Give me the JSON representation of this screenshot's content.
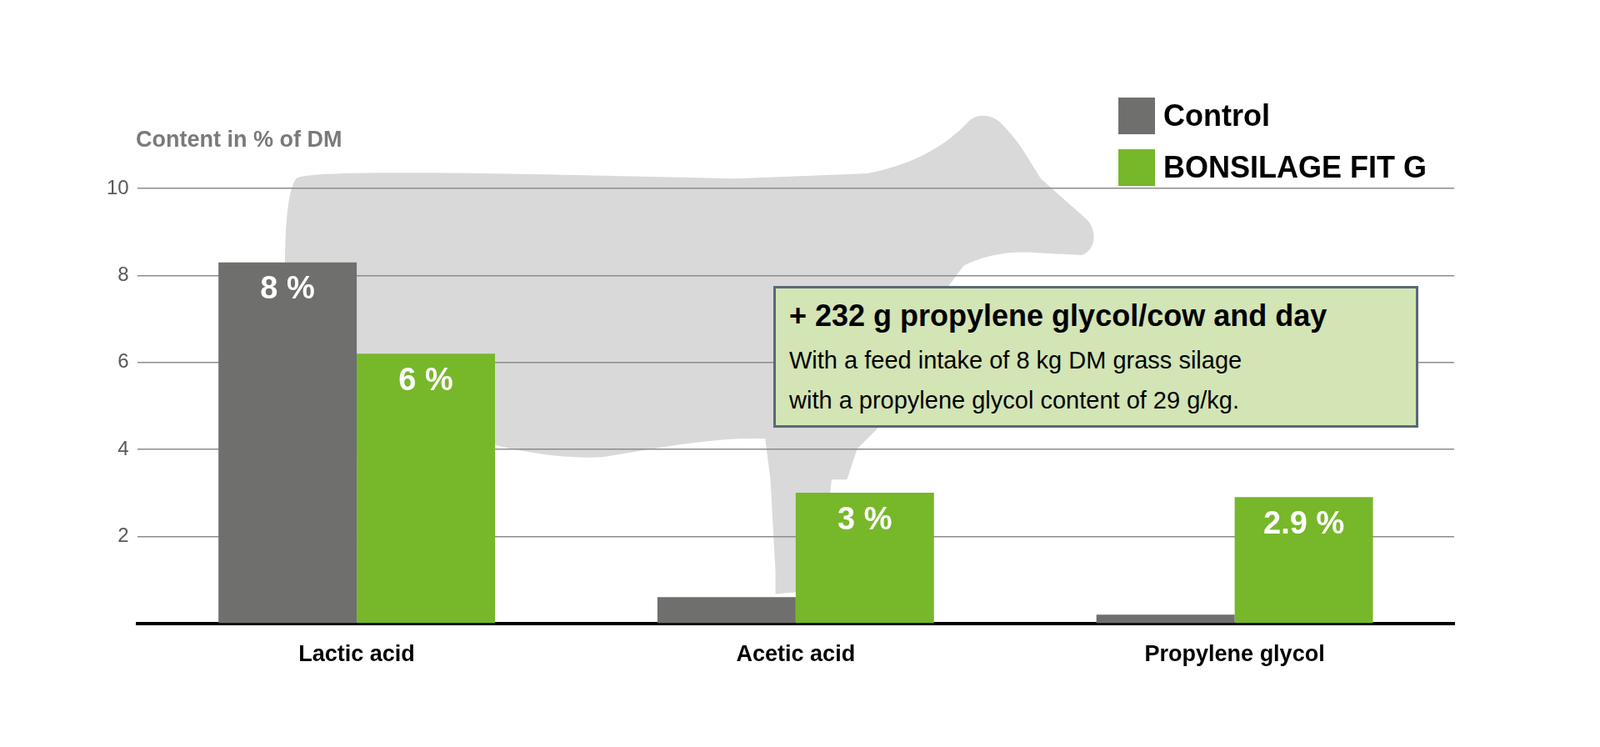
{
  "chart_data": {
    "type": "bar",
    "y_label": "Content in % of DM",
    "categories": [
      "Lactic acid",
      "Acetic acid",
      "Propylene glycol"
    ],
    "series": [
      {
        "name": "Control",
        "color": "#6f6f6e",
        "values": [
          8.3,
          0.6,
          0.2
        ],
        "value_labels": [
          "8 %",
          null,
          null
        ]
      },
      {
        "name": "BONSILAGE FIT G",
        "color": "#77b72a",
        "values": [
          6.2,
          3,
          2.9
        ],
        "value_labels": [
          "6 %",
          "3 %",
          "2.9 %"
        ]
      }
    ],
    "ylim": [
      0,
      10
    ],
    "yticks": [
      2,
      4,
      6,
      8,
      10
    ],
    "grid": true,
    "legend": "upper right",
    "data_labels": true,
    "annotations": [
      {
        "title": "+ 232 g propylene glycol/cow and day",
        "text": [
          "With a feed intake of 8 kg DM grass silage",
          "with a propylene glycol content of 29 g/kg."
        ]
      }
    ]
  }
}
